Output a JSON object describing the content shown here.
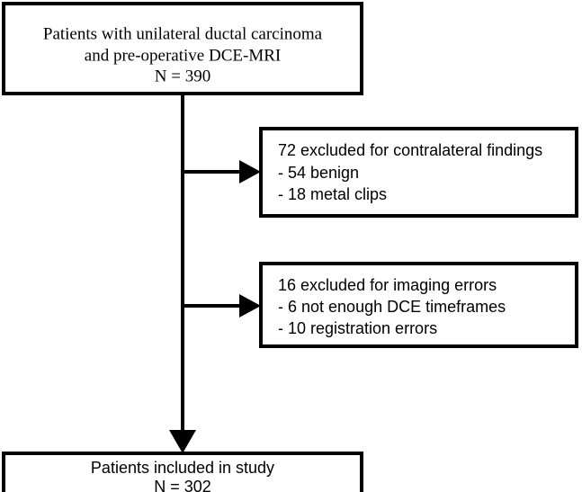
{
  "nodes": [
    {
      "lines": [
        "Patients with unilateral ductal carcinoma",
        "and pre-operative DCE-MRI",
        "N = 390"
      ]
    },
    {
      "lines": [
        "72 excluded for contralateral findings",
        "- 54 benign",
        "- 18 metal clips"
      ]
    },
    {
      "lines": [
        "16 excluded for imaging errors",
        "- 6 not enough DCE timeframes",
        "- 10 registration errors"
      ]
    },
    {
      "lines": [
        "Patients included in study",
        "N = 302"
      ]
    }
  ]
}
